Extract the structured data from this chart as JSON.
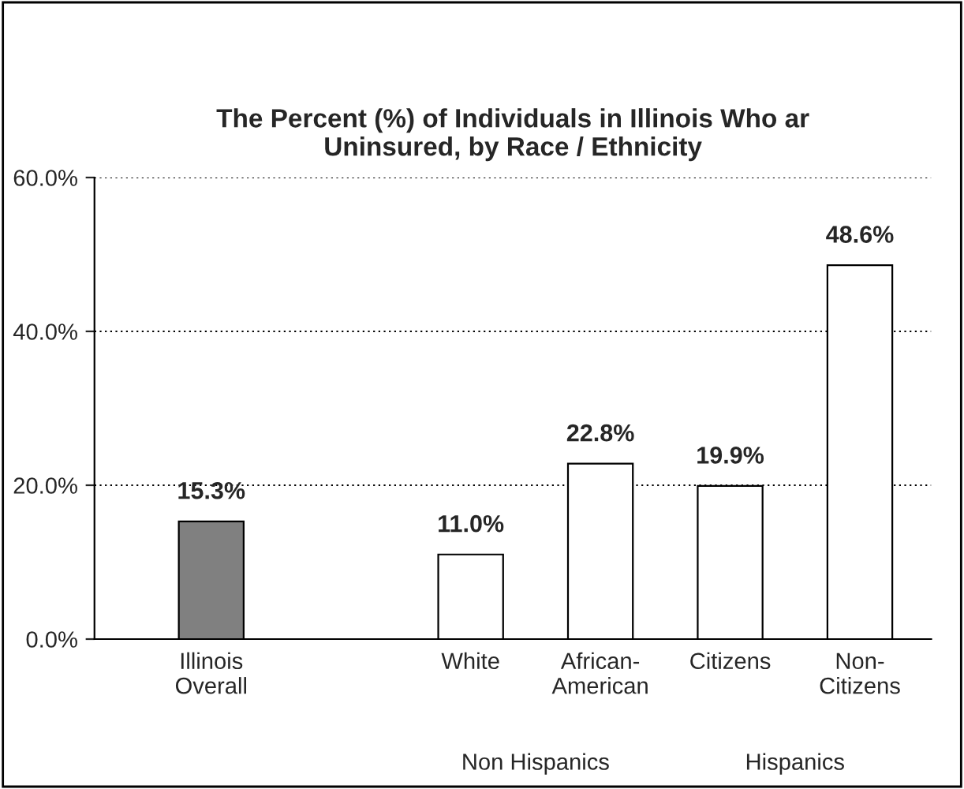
{
  "chart_data": {
    "type": "bar",
    "title": "The Percent (%) of Individuals in Illinois Who ar\nUninsured, by Race / Ethnicity",
    "categories": [
      "Illinois\nOverall",
      null,
      "White",
      "African-\nAmerican",
      "Citizens",
      "Non-\nCitizens"
    ],
    "values": [
      15.3,
      null,
      11.0,
      22.8,
      19.9,
      48.6
    ],
    "value_labels": [
      "15.3%",
      null,
      "11.0%",
      "22.8%",
      "19.9%",
      "48.6%"
    ],
    "colors": [
      "#808080",
      null,
      "#ffffff",
      "#ffffff",
      "#ffffff",
      "#ffffff"
    ],
    "ylim": [
      0,
      60
    ],
    "yticks": [
      {
        "value": 0,
        "label": "0.0%"
      },
      {
        "value": 20,
        "label": "20.0%"
      },
      {
        "value": 40,
        "label": "40.0%"
      },
      {
        "value": 60,
        "label": "60.0%"
      }
    ],
    "grid": "y",
    "annotations": [
      "Non Hispanics",
      "Hispanics"
    ]
  }
}
